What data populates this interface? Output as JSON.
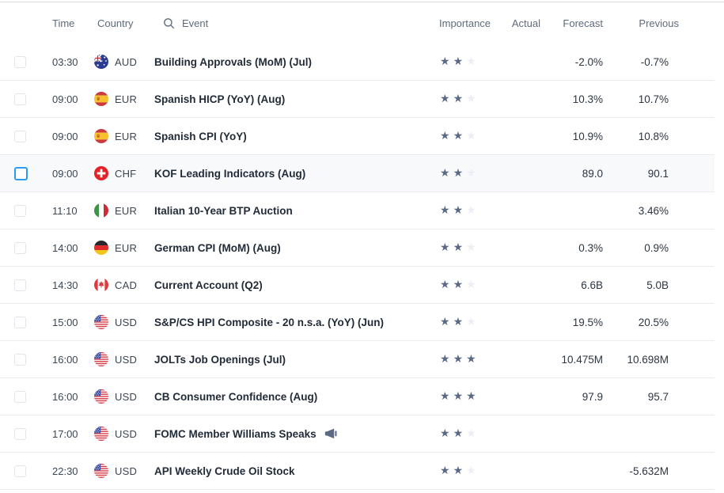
{
  "theme": {
    "accent": "#2e9bf0",
    "star_filled": "#5a6a85",
    "star_empty": "#ebeff5"
  },
  "header": {
    "time": "Time",
    "country": "Country",
    "event": "Event",
    "importance": "Importance",
    "actual": "Actual",
    "forecast": "Forecast",
    "previous": "Previous",
    "search_icon": "search-icon"
  },
  "table": {
    "rows": [
      {
        "time": "03:30",
        "flag": "australia",
        "currency": "AUD",
        "event": "Building Approvals (MoM) (Jul)",
        "importance": 2,
        "actual": "",
        "forecast": "-2.0%",
        "previous": "-0.7%",
        "speech": false,
        "highlighted": false,
        "checkbox_focused": false
      },
      {
        "time": "09:00",
        "flag": "spain",
        "currency": "EUR",
        "event": "Spanish HICP (YoY) (Aug)",
        "importance": 2,
        "actual": "",
        "forecast": "10.3%",
        "previous": "10.7%",
        "speech": false,
        "highlighted": false,
        "checkbox_focused": false
      },
      {
        "time": "09:00",
        "flag": "spain",
        "currency": "EUR",
        "event": "Spanish CPI (YoY)",
        "importance": 2,
        "actual": "",
        "forecast": "10.9%",
        "previous": "10.8%",
        "speech": false,
        "highlighted": false,
        "checkbox_focused": false
      },
      {
        "time": "09:00",
        "flag": "switzerland",
        "currency": "CHF",
        "event": "KOF Leading Indicators (Aug)",
        "importance": 2,
        "actual": "",
        "forecast": "89.0",
        "previous": "90.1",
        "speech": false,
        "highlighted": true,
        "checkbox_focused": true
      },
      {
        "time": "11:10",
        "flag": "italy",
        "currency": "EUR",
        "event": "Italian 10-Year BTP Auction",
        "importance": 2,
        "actual": "",
        "forecast": "",
        "previous": "3.46%",
        "speech": false,
        "highlighted": false,
        "checkbox_focused": false
      },
      {
        "time": "14:00",
        "flag": "germany",
        "currency": "EUR",
        "event": "German CPI (MoM) (Aug)",
        "importance": 2,
        "actual": "",
        "forecast": "0.3%",
        "previous": "0.9%",
        "speech": false,
        "highlighted": false,
        "checkbox_focused": false
      },
      {
        "time": "14:30",
        "flag": "canada",
        "currency": "CAD",
        "event": "Current Account (Q2)",
        "importance": 2,
        "actual": "",
        "forecast": "6.6B",
        "previous": "5.0B",
        "speech": false,
        "highlighted": false,
        "checkbox_focused": false
      },
      {
        "time": "15:00",
        "flag": "usa",
        "currency": "USD",
        "event": "S&P/CS HPI Composite - 20 n.s.a. (YoY) (Jun)",
        "importance": 2,
        "actual": "",
        "forecast": "19.5%",
        "previous": "20.5%",
        "speech": false,
        "highlighted": false,
        "checkbox_focused": false
      },
      {
        "time": "16:00",
        "flag": "usa",
        "currency": "USD",
        "event": "JOLTs Job Openings (Jul)",
        "importance": 3,
        "actual": "",
        "forecast": "10.475M",
        "previous": "10.698M",
        "speech": false,
        "highlighted": false,
        "checkbox_focused": false
      },
      {
        "time": "16:00",
        "flag": "usa",
        "currency": "USD",
        "event": "CB Consumer Confidence (Aug)",
        "importance": 3,
        "actual": "",
        "forecast": "97.9",
        "previous": "95.7",
        "speech": false,
        "highlighted": false,
        "checkbox_focused": false
      },
      {
        "time": "17:00",
        "flag": "usa",
        "currency": "USD",
        "event": "FOMC Member Williams Speaks",
        "importance": 2,
        "actual": "",
        "forecast": "",
        "previous": "",
        "speech": true,
        "highlighted": false,
        "checkbox_focused": false
      },
      {
        "time": "22:30",
        "flag": "usa",
        "currency": "USD",
        "event": "API Weekly Crude Oil Stock",
        "importance": 2,
        "actual": "",
        "forecast": "",
        "previous": "-5.632M",
        "speech": false,
        "highlighted": false,
        "checkbox_focused": false
      }
    ]
  }
}
